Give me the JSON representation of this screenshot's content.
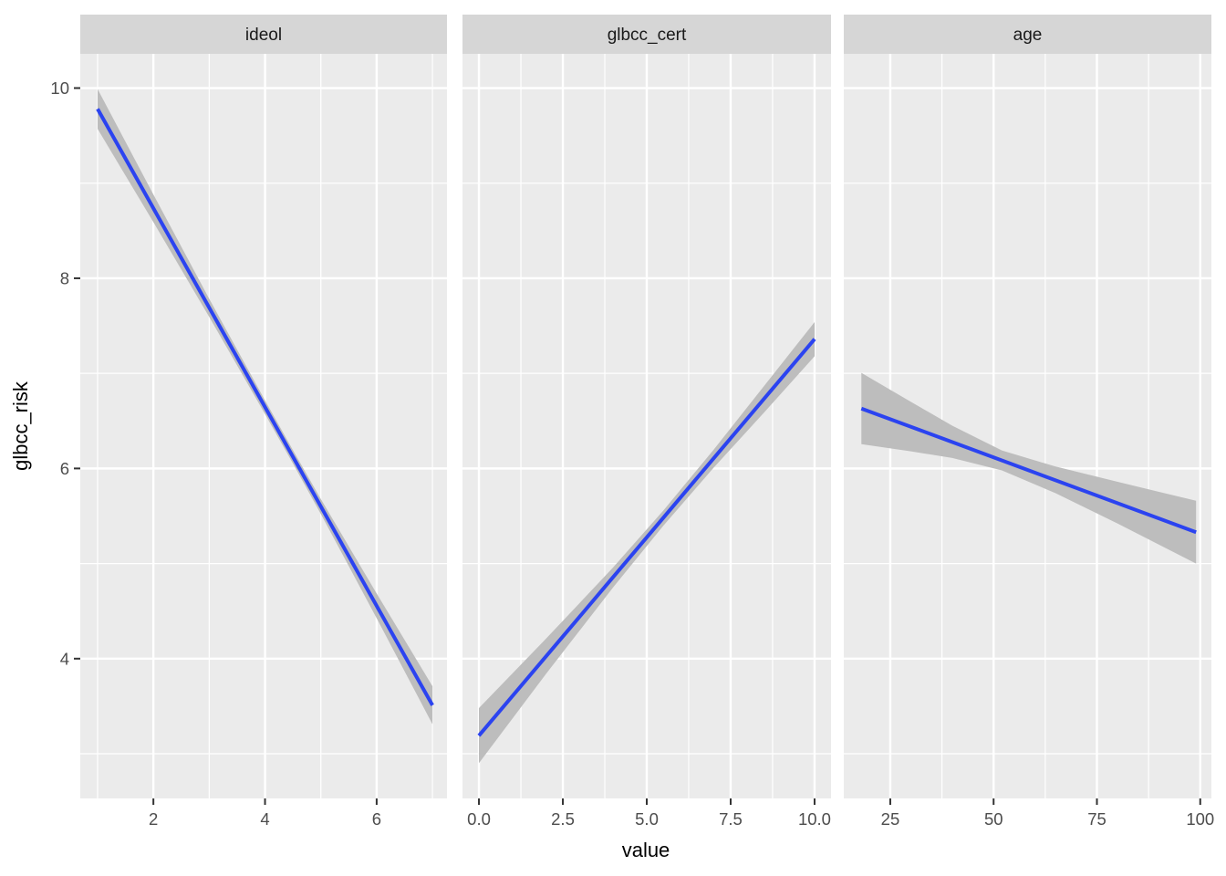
{
  "figure": {
    "xlabel": "value",
    "ylabel": "glbcc_risk"
  },
  "colors": {
    "panel_bg": "#EBEBEB",
    "strip_bg": "#D6D6D6",
    "grid": "#FFFFFF",
    "line": "#2B43F0",
    "ribbon": "#BDBDBD",
    "tick_label": "#4D4D4D",
    "tick_mark": "#333333",
    "strip_text": "#1A1A1A",
    "axis_title": "#000000"
  },
  "y_axis": {
    "label": "glbcc_risk",
    "ticks": {
      "labels": [
        "10",
        "8",
        "6",
        "4"
      ],
      "values": [
        10,
        8,
        6,
        4
      ]
    },
    "minor": [
      9,
      7,
      5,
      3
    ],
    "ylim": [
      2.53,
      10.36
    ]
  },
  "chart_data": [
    {
      "type": "line",
      "facet": "ideol",
      "title": "",
      "xlabel": "value",
      "ylabel": "glbcc_risk",
      "xlim": [
        0.69,
        7.26
      ],
      "x_ticks": {
        "labels": [
          "2",
          "4",
          "6"
        ],
        "values": [
          2,
          4,
          6
        ]
      },
      "x_minor": [
        1,
        3,
        5,
        7
      ],
      "series": [
        {
          "name": "linear-fit",
          "x": [
            1,
            7
          ],
          "y": [
            9.78,
            3.51
          ]
        }
      ],
      "ribbon": {
        "x": [
          1,
          2,
          3,
          4,
          4.5,
          5,
          6,
          7
        ],
        "upper": [
          9.99,
          8.88,
          7.785,
          6.717,
          6.193,
          5.678,
          4.685,
          3.71
        ],
        "lower": [
          9.57,
          8.59,
          7.595,
          6.573,
          6.053,
          5.522,
          4.425,
          3.31
        ]
      }
    },
    {
      "type": "line",
      "facet": "glbcc_cert",
      "title": "",
      "xlabel": "value",
      "ylabel": "glbcc_risk",
      "xlim": [
        -0.49,
        10.49
      ],
      "x_ticks": {
        "labels": [
          "0.0",
          "2.5",
          "5.0",
          "7.5",
          "10.0"
        ],
        "values": [
          0,
          2.5,
          5,
          7.5,
          10
        ]
      },
      "x_minor": [
        1.25,
        3.75,
        6.25,
        8.75
      ],
      "series": [
        {
          "name": "linear-fit",
          "x": [
            0,
            10
          ],
          "y": [
            3.19,
            7.36
          ]
        }
      ],
      "ribbon": {
        "x": [
          0,
          2,
          4,
          5.5,
          7,
          8.5,
          10
        ],
        "upper": [
          3.48,
          4.21,
          4.96,
          5.56,
          6.2,
          6.87,
          7.54
        ],
        "lower": [
          2.9,
          3.84,
          4.75,
          5.4,
          6.01,
          6.59,
          7.18
        ]
      }
    },
    {
      "type": "line",
      "facet": "age",
      "title": "",
      "xlabel": "value",
      "ylabel": "glbcc_risk",
      "xlim": [
        13.75,
        102.7
      ],
      "x_ticks": {
        "labels": [
          "25",
          "50",
          "75",
          "100"
        ],
        "values": [
          25,
          50,
          75,
          100
        ]
      },
      "x_minor": [
        37.5,
        62.5,
        87.5
      ],
      "series": [
        {
          "name": "linear-fit",
          "x": [
            18,
            99
          ],
          "y": [
            6.63,
            5.33
          ]
        }
      ],
      "ribbon": {
        "x": [
          18,
          30,
          40,
          52,
          65,
          80,
          99
        ],
        "upper": [
          7.005,
          6.7,
          6.45,
          6.19,
          6.02,
          5.86,
          5.66
        ],
        "lower": [
          6.255,
          6.18,
          6.11,
          5.98,
          5.74,
          5.42,
          5.0
        ]
      }
    }
  ]
}
